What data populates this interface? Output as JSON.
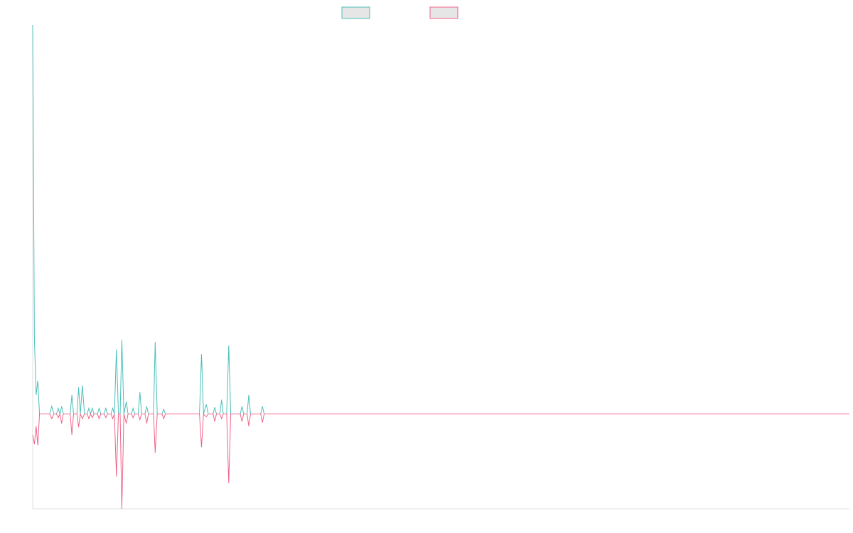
{
  "colors": {
    "series_a": "#4bbfba",
    "series_b": "#f0648a",
    "swatch_fill": "#e6e6e6",
    "axis": "#e0e0e0"
  },
  "chart_data": {
    "type": "line",
    "title": "",
    "xlabel": "",
    "ylabel": "",
    "legend": "top-center",
    "grid": false,
    "xlim": [
      0,
      240
    ],
    "ylim": [
      -1,
      4.1
    ],
    "series": [
      {
        "color": "#4bbfba",
        "points": [
          [
            0,
            4.1
          ],
          [
            0.5,
            0.8
          ],
          [
            1,
            0.2
          ],
          [
            1.5,
            0.35
          ],
          [
            2,
            0
          ],
          [
            5,
            0
          ],
          [
            5.6,
            0.08
          ],
          [
            6.2,
            0
          ],
          [
            7,
            0
          ],
          [
            7.5,
            0.06
          ],
          [
            8,
            0
          ],
          [
            8.5,
            0.08
          ],
          [
            9,
            0
          ],
          [
            11,
            0
          ],
          [
            11.5,
            0.2
          ],
          [
            12,
            0
          ],
          [
            13,
            0
          ],
          [
            13.5,
            0.28
          ],
          [
            14,
            0
          ],
          [
            14.6,
            0.3
          ],
          [
            15.2,
            0
          ],
          [
            16,
            0
          ],
          [
            16.5,
            0.06
          ],
          [
            17,
            0
          ],
          [
            17.5,
            0.06
          ],
          [
            18,
            0
          ],
          [
            19,
            0
          ],
          [
            19.5,
            0.06
          ],
          [
            20,
            0
          ],
          [
            21,
            0
          ],
          [
            21.5,
            0.06
          ],
          [
            22,
            0
          ],
          [
            23,
            0
          ],
          [
            23.5,
            0.06
          ],
          [
            24,
            0
          ],
          [
            24.6,
            0.68
          ],
          [
            25.2,
            0
          ],
          [
            25.7,
            0
          ],
          [
            26.2,
            0.78
          ],
          [
            26.8,
            0
          ],
          [
            27.5,
            0.13
          ],
          [
            28,
            0
          ],
          [
            29,
            0
          ],
          [
            29.5,
            0.06
          ],
          [
            30,
            0
          ],
          [
            31,
            0
          ],
          [
            31.5,
            0.23
          ],
          [
            32,
            0
          ],
          [
            33,
            0
          ],
          [
            33.5,
            0.08
          ],
          [
            34,
            0
          ],
          [
            35.5,
            0
          ],
          [
            36,
            0.76
          ],
          [
            36.6,
            0
          ],
          [
            38,
            0
          ],
          [
            38.5,
            0.05
          ],
          [
            39,
            0
          ],
          [
            49,
            0
          ],
          [
            49.6,
            0.63
          ],
          [
            50.2,
            0
          ],
          [
            51,
            0.1
          ],
          [
            51.6,
            0
          ],
          [
            53,
            0
          ],
          [
            53.5,
            0.07
          ],
          [
            54,
            0
          ],
          [
            55,
            0
          ],
          [
            55.5,
            0.15
          ],
          [
            56,
            0
          ],
          [
            57,
            0
          ],
          [
            57.6,
            0.72
          ],
          [
            58.2,
            0
          ],
          [
            61,
            0
          ],
          [
            61.5,
            0.08
          ],
          [
            62,
            0
          ],
          [
            63,
            0
          ],
          [
            63.5,
            0.2
          ],
          [
            64,
            0
          ],
          [
            67,
            0
          ],
          [
            67.5,
            0.08
          ],
          [
            68,
            0
          ],
          [
            240,
            0
          ]
        ]
      },
      {
        "color": "#f0648a",
        "points": [
          [
            0,
            -0.22
          ],
          [
            0.5,
            -0.32
          ],
          [
            1,
            -0.13
          ],
          [
            1.5,
            -0.33
          ],
          [
            2,
            0
          ],
          [
            5,
            0
          ],
          [
            5.6,
            -0.05
          ],
          [
            6.2,
            0
          ],
          [
            7,
            0
          ],
          [
            7.5,
            -0.04
          ],
          [
            8,
            0
          ],
          [
            8.5,
            -0.1
          ],
          [
            9,
            0
          ],
          [
            11,
            0
          ],
          [
            11.5,
            -0.22
          ],
          [
            12,
            0
          ],
          [
            13,
            0
          ],
          [
            13.5,
            -0.14
          ],
          [
            14,
            0
          ],
          [
            14.6,
            -0.05
          ],
          [
            15.2,
            0
          ],
          [
            16,
            0
          ],
          [
            16.5,
            -0.05
          ],
          [
            17,
            0
          ],
          [
            17.5,
            -0.04
          ],
          [
            18,
            0
          ],
          [
            19,
            0
          ],
          [
            19.5,
            -0.05
          ],
          [
            20,
            0
          ],
          [
            21,
            0
          ],
          [
            21.5,
            -0.04
          ],
          [
            22,
            0
          ],
          [
            23,
            0
          ],
          [
            23.5,
            -0.05
          ],
          [
            24,
            0
          ],
          [
            24.6,
            -0.66
          ],
          [
            25.2,
            0
          ],
          [
            25.7,
            0
          ],
          [
            26.2,
            -1.0
          ],
          [
            26.8,
            0
          ],
          [
            27.5,
            -0.1
          ],
          [
            28,
            0
          ],
          [
            29,
            0
          ],
          [
            29.5,
            -0.04
          ],
          [
            30,
            0
          ],
          [
            31,
            0
          ],
          [
            31.5,
            -0.06
          ],
          [
            32,
            0
          ],
          [
            33,
            0
          ],
          [
            33.5,
            -0.1
          ],
          [
            34,
            0
          ],
          [
            35.5,
            0
          ],
          [
            36,
            -0.41
          ],
          [
            36.6,
            0
          ],
          [
            38,
            0
          ],
          [
            38.5,
            -0.05
          ],
          [
            39,
            0
          ],
          [
            49,
            0
          ],
          [
            49.6,
            -0.35
          ],
          [
            50.2,
            0
          ],
          [
            51,
            -0.03
          ],
          [
            51.6,
            0
          ],
          [
            53,
            0
          ],
          [
            53.5,
            -0.08
          ],
          [
            54,
            0
          ],
          [
            55,
            0
          ],
          [
            55.5,
            -0.05
          ],
          [
            56,
            0
          ],
          [
            57,
            0
          ],
          [
            57.6,
            -0.73
          ],
          [
            58.2,
            0
          ],
          [
            61,
            0
          ],
          [
            61.5,
            -0.08
          ],
          [
            62,
            0
          ],
          [
            63,
            0
          ],
          [
            63.5,
            -0.13
          ],
          [
            64,
            0
          ],
          [
            67,
            0
          ],
          [
            67.5,
            -0.09
          ],
          [
            68,
            0
          ],
          [
            240,
            0
          ]
        ]
      }
    ]
  }
}
